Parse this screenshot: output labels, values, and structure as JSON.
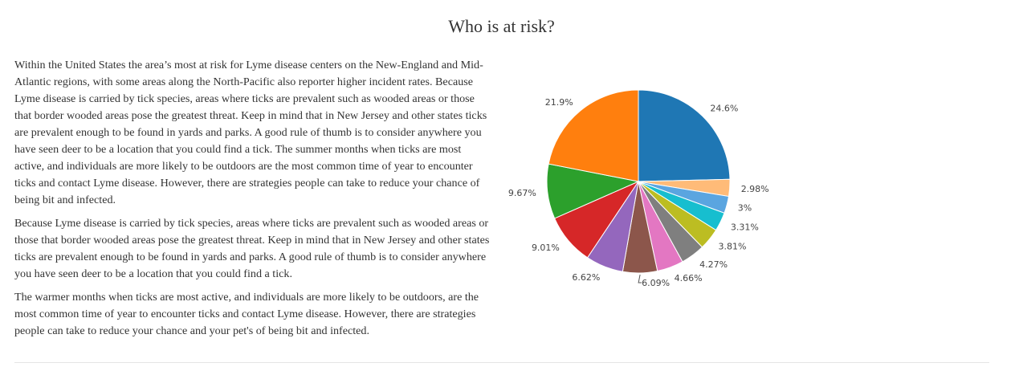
{
  "page": {
    "title": "Who is at risk?",
    "paragraphs": [
      "Within the United States the area’s most at risk for Lyme disease centers on the New-England and Mid-Atlantic regions, with some areas along the North-Pacific also reporter higher incident rates. Because Lyme disease is carried by tick species, areas where ticks are prevalent such as wooded areas or those that border wooded areas pose the greatest threat. Keep in mind that in New Jersey and other states ticks are prevalent enough to be found in yards and parks. A good rule of thumb is to consider anywhere you have seen deer to be a location that you could find a tick. The summer months when ticks are most active, and individuals are more likely to be outdoors are the most common time of year to encounter ticks and contact Lyme disease. However, there are strategies people can take to reduce your chance of being bit and infected.",
      "Because Lyme disease is carried by tick species, areas where ticks are prevalent such as wooded areas or those that border wooded areas pose the greatest threat. Keep in mind that in New Jersey and other states ticks are prevalent enough to be found in yards and parks. A good rule of thumb is to consider anywhere you have seen deer to be a location that you could find a tick.",
      "The warmer months when ticks are most active, and individuals are more likely to be outdoors, are the most common time of year to encounter ticks and contact Lyme disease. However, there are strategies people can take to reduce your chance and your pet's of being bit and infected."
    ]
  },
  "chart_data": {
    "type": "pie",
    "direction": "clockwise",
    "start": "12 o'clock",
    "legend": "none",
    "slices": [
      {
        "value": 24.6,
        "label": "24.6%",
        "color": "#1f77b4"
      },
      {
        "value": 2.98,
        "label": "2.98%",
        "color": "#ffbb78"
      },
      {
        "value": 3,
        "label": "3%",
        "color": "#5aa5e0"
      },
      {
        "value": 3.31,
        "label": "3.31%",
        "color": "#17becf"
      },
      {
        "value": 3.81,
        "label": "3.81%",
        "color": "#bcbd22"
      },
      {
        "value": 4.27,
        "label": "4.27%",
        "color": "#7f7f7f"
      },
      {
        "value": 4.66,
        "label": "4.66%",
        "color": "#e377c2"
      },
      {
        "value": 6.09,
        "label": "6.09%",
        "color": "#8c564b"
      },
      {
        "value": 6.62,
        "label": "6.62%",
        "color": "#9467bd"
      },
      {
        "value": 9.01,
        "label": "9.01%",
        "color": "#d62728"
      },
      {
        "value": 9.67,
        "label": "9.67%",
        "color": "#2ca02c"
      },
      {
        "value": 21.9,
        "label": "21.9%",
        "color": "#ff7f0e"
      }
    ]
  }
}
